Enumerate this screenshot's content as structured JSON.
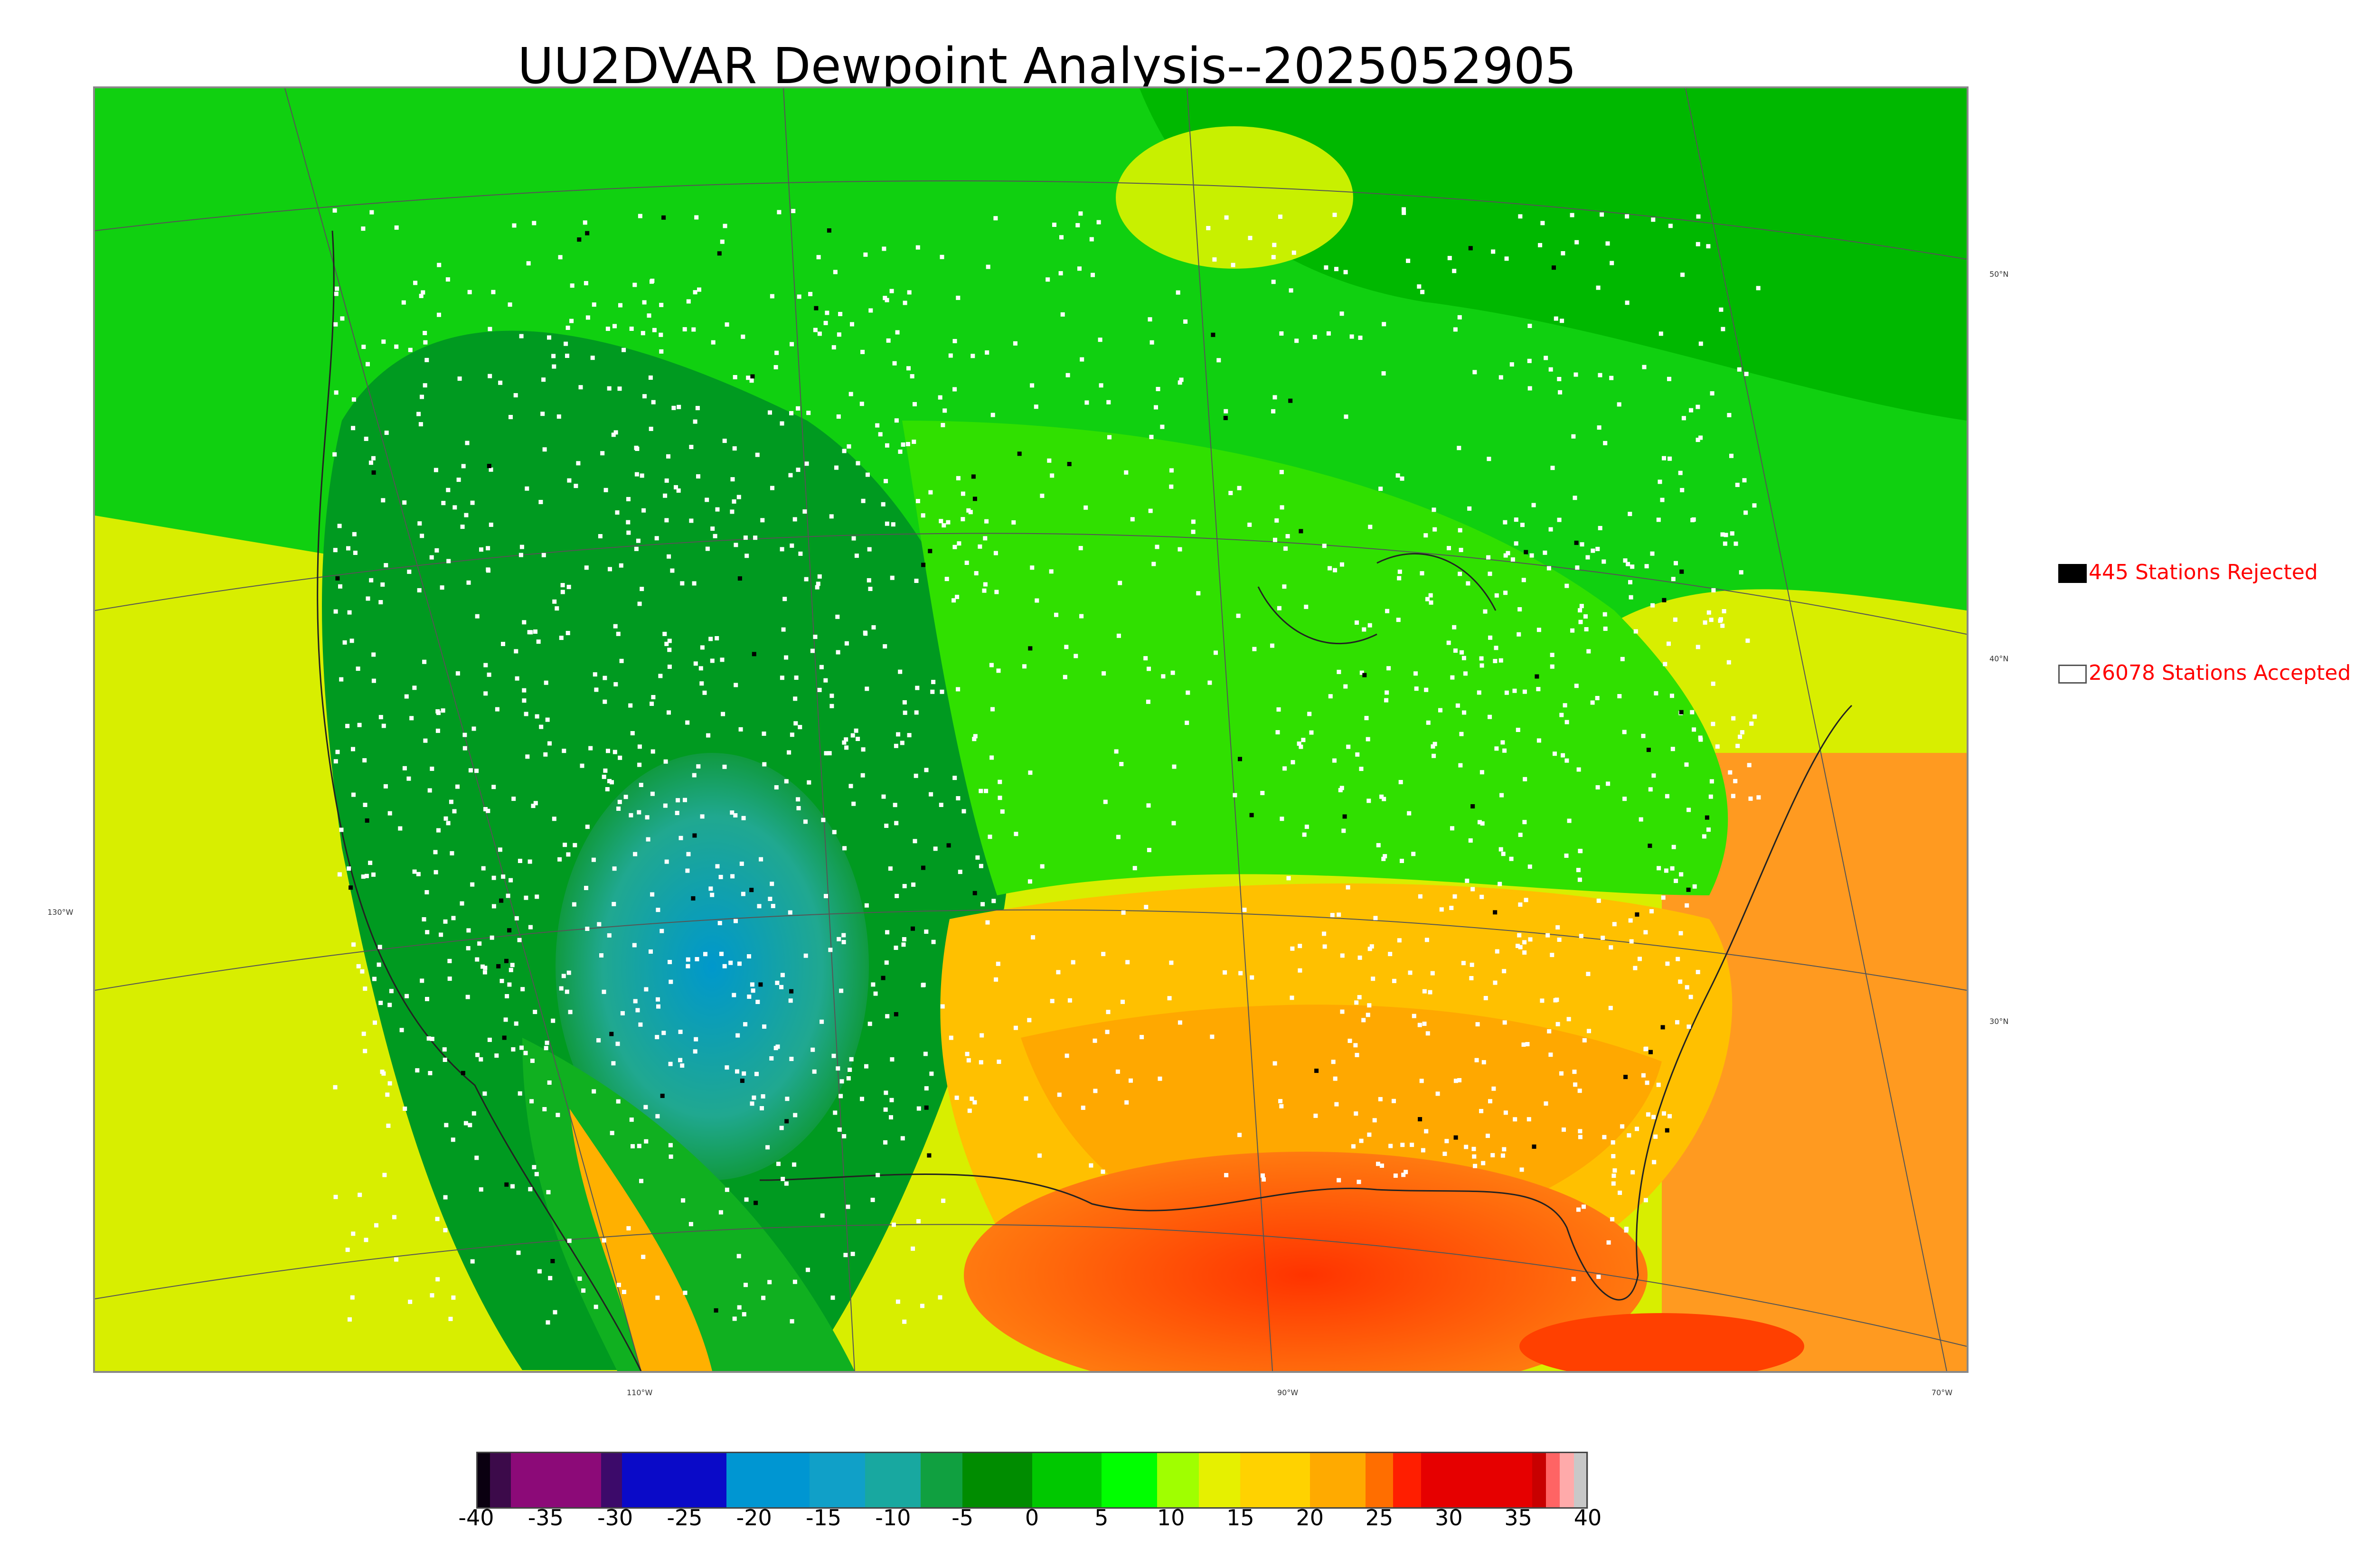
{
  "title": "UU2DVAR Dewpoint Analysis--2025052905",
  "map": {
    "lat_labels": [
      "50°N",
      "40°N",
      "30°N",
      "130°W"
    ],
    "lon_labels": [
      "110°W",
      "90°W",
      "70°W"
    ]
  },
  "legend": {
    "rejected": {
      "label": "445 Stations Rejected",
      "color": "#000000"
    },
    "accepted": {
      "label": "26078 Stations Accepted",
      "color": "#ffffff"
    }
  },
  "colorbar": {
    "ticks": [
      "-40",
      "-35",
      "-30",
      "-25",
      "-20",
      "-15",
      "-10",
      "-5",
      "0",
      "5",
      "10",
      "15",
      "20",
      "25",
      "30",
      "35",
      "40"
    ],
    "range": [
      -40,
      40
    ],
    "colors": [
      {
        "from": -40,
        "to": -39,
        "color": "#0a0010"
      },
      {
        "from": -39,
        "to": -37.5,
        "color": "#3c0a4a"
      },
      {
        "from": -37.5,
        "to": -31,
        "color": "#8c0a78"
      },
      {
        "from": -31,
        "to": -29.5,
        "color": "#3c0a6a"
      },
      {
        "from": -29.5,
        "to": -22,
        "color": "#0a0ac8"
      },
      {
        "from": -22,
        "to": -16,
        "color": "#0096d2"
      },
      {
        "from": -16,
        "to": -12,
        "color": "#10a0c8"
      },
      {
        "from": -12,
        "to": -8,
        "color": "#18a8a0"
      },
      {
        "from": -8,
        "to": -5,
        "color": "#10a040"
      },
      {
        "from": -5,
        "to": 0,
        "color": "#008c00"
      },
      {
        "from": 0,
        "to": 5,
        "color": "#00c800"
      },
      {
        "from": 5,
        "to": 9,
        "color": "#00ff00"
      },
      {
        "from": 9,
        "to": 12,
        "color": "#a0ff00"
      },
      {
        "from": 12,
        "to": 15,
        "color": "#e6f000"
      },
      {
        "from": 15,
        "to": 20,
        "color": "#ffd200"
      },
      {
        "from": 20,
        "to": 24,
        "color": "#ffaa00"
      },
      {
        "from": 24,
        "to": 26,
        "color": "#ff6e00"
      },
      {
        "from": 26,
        "to": 28,
        "color": "#ff1e00"
      },
      {
        "from": 28,
        "to": 36,
        "color": "#e60000"
      },
      {
        "from": 36,
        "to": 37,
        "color": "#c80000"
      },
      {
        "from": 37,
        "to": 38,
        "color": "#ff6464"
      },
      {
        "from": 38,
        "to": 39,
        "color": "#ffaaaa"
      },
      {
        "from": 39,
        "to": 40,
        "color": "#c8c8c8"
      }
    ]
  }
}
